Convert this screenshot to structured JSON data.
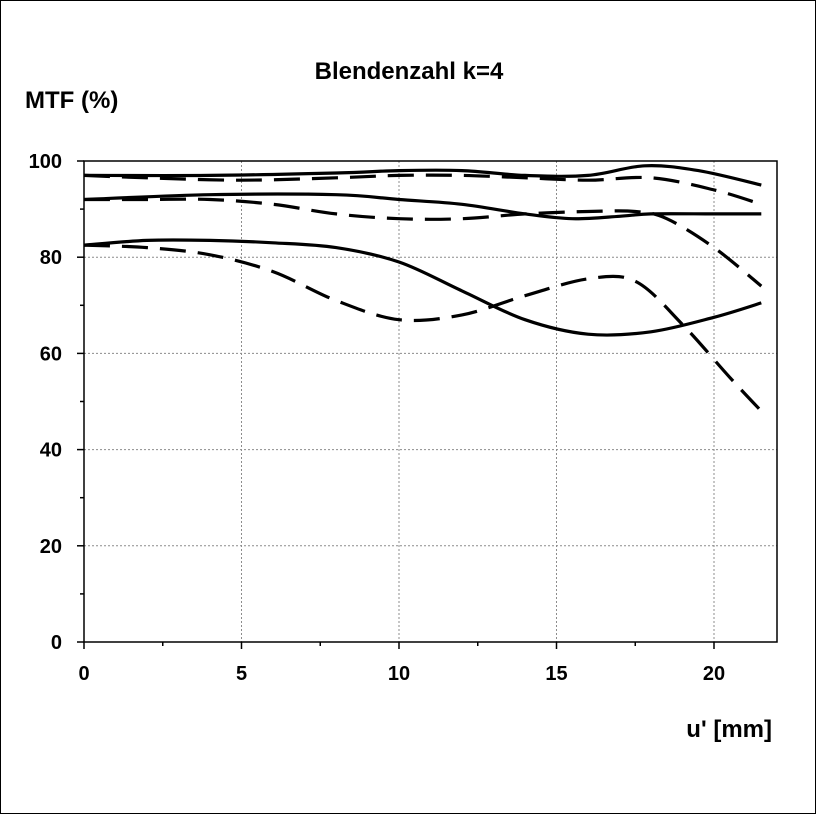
{
  "chart_data": {
    "type": "line",
    "title": "Blendenzahl k=4",
    "ylabel": "MTF (%)",
    "xlabel": "u' [mm]",
    "xlim": [
      0,
      22
    ],
    "ylim": [
      0,
      100
    ],
    "x_ticks": [
      "0",
      "5",
      "10",
      "15",
      "20"
    ],
    "y_ticks": [
      "0",
      "20",
      "40",
      "60",
      "80",
      "100"
    ],
    "grid": true,
    "legend": "none",
    "series": [
      {
        "style": "solid",
        "x": [
          0,
          4,
          8,
          10,
          12,
          14,
          16,
          17.8,
          19.5,
          21.5
        ],
        "y": [
          97,
          97,
          97.5,
          98,
          98,
          97,
          97,
          99,
          98,
          95
        ]
      },
      {
        "style": "dashed",
        "x": [
          0,
          2,
          5,
          8,
          10,
          12,
          14,
          16,
          18,
          20,
          21.5
        ],
        "y": [
          97,
          96.5,
          96,
          96.5,
          97,
          97,
          96.5,
          96,
          96.5,
          94,
          91
        ]
      },
      {
        "style": "solid",
        "x": [
          0,
          4,
          8,
          10,
          12,
          14,
          15.5,
          17,
          18,
          20,
          21.5
        ],
        "y": [
          92,
          93,
          93,
          92,
          91,
          89,
          88,
          88.5,
          89,
          89,
          89
        ]
      },
      {
        "style": "dashed",
        "x": [
          0,
          2,
          4,
          6,
          8,
          10,
          12,
          14,
          16,
          17.5,
          18.5,
          20,
          21.5
        ],
        "y": [
          92,
          92,
          92,
          91,
          89,
          88,
          88,
          89,
          89.5,
          89.5,
          88,
          82,
          74
        ]
      },
      {
        "style": "solid",
        "x": [
          0,
          2,
          4,
          6,
          8,
          10,
          12,
          14,
          16,
          18,
          20,
          21.5
        ],
        "y": [
          82.5,
          83.5,
          83.5,
          83,
          82,
          79,
          73,
          67,
          64,
          64.5,
          67.5,
          70.5
        ]
      },
      {
        "style": "dashed",
        "x": [
          0,
          2,
          4,
          6,
          8,
          10,
          12,
          14,
          16,
          17.5,
          19,
          20.5,
          21.5
        ],
        "y": [
          82.5,
          82,
          80.5,
          77,
          71,
          67,
          68,
          72,
          75.5,
          75,
          66,
          55,
          48
        ]
      }
    ]
  }
}
